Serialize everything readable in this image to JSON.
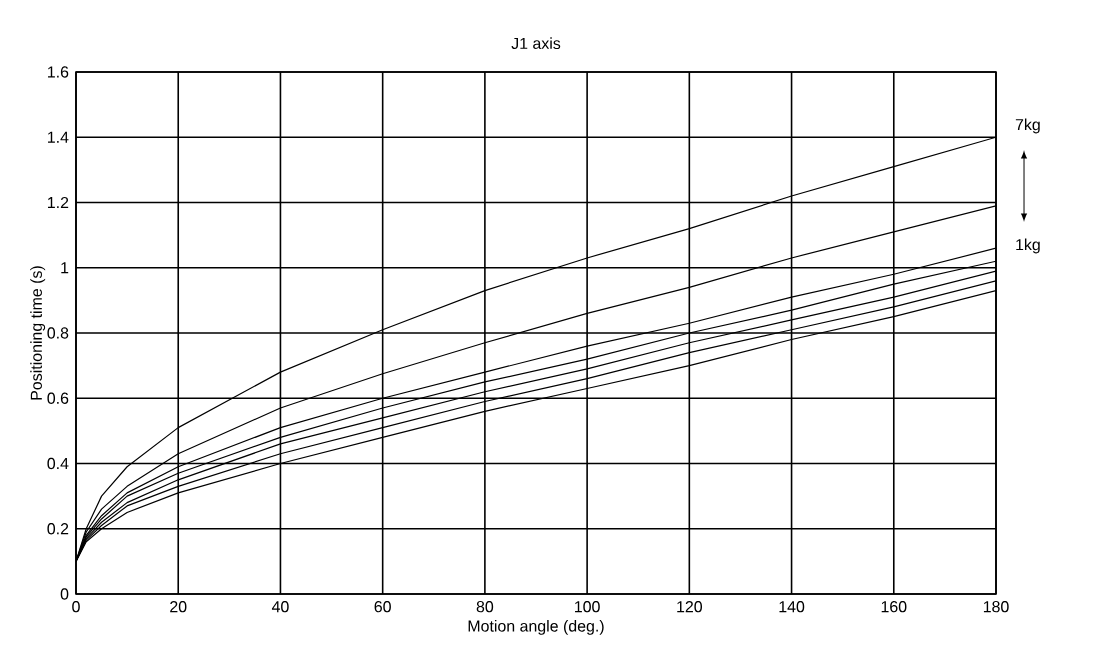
{
  "chart_data": {
    "type": "line",
    "title": "J1 axis",
    "xlabel": "Motion angle (deg.)",
    "ylabel": "Positioning time (s)",
    "x": [
      0,
      2,
      5,
      10,
      20,
      40,
      60,
      80,
      100,
      120,
      140,
      160,
      180
    ],
    "series": [
      {
        "color": "#000000",
        "values": [
          0.1,
          0.2,
          0.3,
          0.39,
          0.51,
          0.68,
          0.81,
          0.93,
          1.03,
          1.12,
          1.22,
          1.31,
          1.4
        ]
      },
      {
        "color": "#000000",
        "values": [
          0.1,
          0.19,
          0.26,
          0.33,
          0.43,
          0.57,
          0.675,
          0.77,
          0.86,
          0.94,
          1.03,
          1.11,
          1.19
        ]
      },
      {
        "color": "#000000",
        "values": [
          0.1,
          0.18,
          0.24,
          0.31,
          0.39,
          0.51,
          0.6,
          0.68,
          0.76,
          0.83,
          0.91,
          0.98,
          1.06
        ]
      },
      {
        "color": "#000000",
        "values": [
          0.1,
          0.175,
          0.23,
          0.3,
          0.37,
          0.48,
          0.57,
          0.65,
          0.72,
          0.8,
          0.87,
          0.95,
          1.02
        ]
      },
      {
        "color": "#000000",
        "values": [
          0.1,
          0.17,
          0.22,
          0.28,
          0.35,
          0.46,
          0.54,
          0.62,
          0.69,
          0.77,
          0.84,
          0.91,
          0.99
        ]
      },
      {
        "color": "#000000",
        "values": [
          0.1,
          0.165,
          0.21,
          0.27,
          0.33,
          0.43,
          0.51,
          0.59,
          0.66,
          0.74,
          0.81,
          0.88,
          0.96
        ]
      },
      {
        "color": "#000000",
        "values": [
          0.1,
          0.16,
          0.2,
          0.25,
          0.31,
          0.4,
          0.48,
          0.56,
          0.63,
          0.7,
          0.78,
          0.85,
          0.93
        ]
      }
    ],
    "annotations": [
      "7kg",
      "1kg"
    ],
    "xlim": [
      0,
      180
    ],
    "xticks": [
      0,
      20,
      40,
      60,
      80,
      100,
      120,
      140,
      160,
      180
    ],
    "ylim": [
      0,
      1.6
    ],
    "yticks": [
      0,
      0.2,
      0.4,
      0.6,
      0.8,
      1,
      1.2,
      1.4,
      1.6
    ],
    "grid": true,
    "marker": "none",
    "line_style": "solid"
  }
}
